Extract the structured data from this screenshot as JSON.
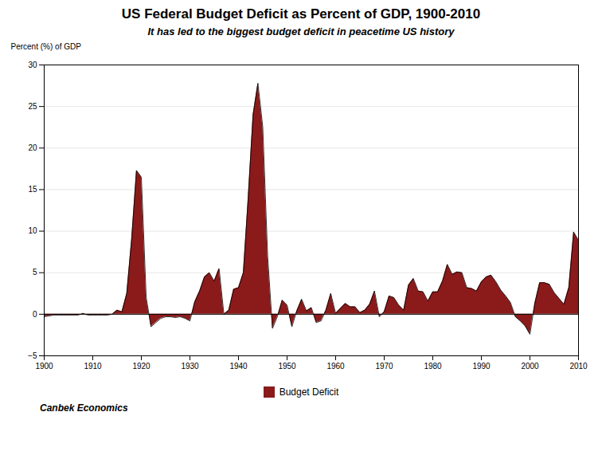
{
  "chart_data": {
    "type": "area",
    "title": "US Federal Budget Deficit as Percent of GDP, 1900-2010",
    "subtitle": "It has led to the biggest budget deficit in peacetime US history",
    "y_label": "Percent (%) of GDP",
    "annotations": [
      "Canbek Economics"
    ],
    "x": [
      1900,
      1901,
      1902,
      1903,
      1904,
      1905,
      1906,
      1907,
      1908,
      1909,
      1910,
      1911,
      1912,
      1913,
      1914,
      1915,
      1916,
      1917,
      1918,
      1919,
      1920,
      1921,
      1922,
      1923,
      1924,
      1925,
      1926,
      1927,
      1928,
      1929,
      1930,
      1931,
      1932,
      1933,
      1934,
      1935,
      1936,
      1937,
      1938,
      1939,
      1940,
      1941,
      1942,
      1943,
      1944,
      1945,
      1946,
      1947,
      1948,
      1949,
      1950,
      1951,
      1952,
      1953,
      1954,
      1955,
      1956,
      1957,
      1958,
      1959,
      1960,
      1961,
      1962,
      1963,
      1964,
      1965,
      1966,
      1967,
      1968,
      1969,
      1970,
      1971,
      1972,
      1973,
      1974,
      1975,
      1976,
      1977,
      1978,
      1979,
      1980,
      1981,
      1982,
      1983,
      1984,
      1985,
      1986,
      1987,
      1988,
      1989,
      1990,
      1991,
      1992,
      1993,
      1994,
      1995,
      1996,
      1997,
      1998,
      1999,
      2000,
      2001,
      2002,
      2003,
      2004,
      2005,
      2006,
      2007,
      2008,
      2009,
      2010
    ],
    "series": [
      {
        "name": "Budget Deficit",
        "color": "#8B1A1A",
        "values": [
          -0.3,
          -0.2,
          -0.1,
          -0.1,
          -0.1,
          -0.1,
          -0.1,
          -0.1,
          0.1,
          -0.1,
          -0.1,
          -0.1,
          -0.1,
          -0.1,
          0.0,
          0.5,
          0.3,
          2.5,
          9.0,
          17.3,
          16.5,
          2.0,
          -1.5,
          -1.0,
          -0.5,
          -0.3,
          -0.3,
          -0.4,
          -0.3,
          -0.5,
          -0.8,
          1.5,
          2.8,
          4.5,
          5.0,
          4.0,
          5.5,
          0.0,
          0.5,
          3.0,
          3.2,
          5.0,
          14.0,
          24.0,
          27.8,
          22.5,
          7.0,
          -1.7,
          -0.3,
          1.7,
          1.1,
          -1.5,
          0.4,
          1.8,
          0.4,
          0.8,
          -1.0,
          -0.8,
          0.5,
          2.5,
          0.1,
          0.7,
          1.3,
          0.9,
          0.9,
          0.2,
          0.5,
          1.2,
          2.8,
          -0.3,
          0.3,
          2.2,
          2.0,
          1.1,
          0.5,
          3.5,
          4.3,
          2.8,
          2.7,
          1.6,
          2.7,
          2.7,
          4.0,
          6.0,
          4.8,
          5.1,
          5.0,
          3.2,
          3.1,
          2.8,
          3.9,
          4.5,
          4.7,
          3.9,
          2.9,
          2.2,
          1.4,
          -0.3,
          -0.8,
          -1.4,
          -2.4,
          1.3,
          3.8,
          3.8,
          3.6,
          2.6,
          1.9,
          1.2,
          3.2,
          9.9,
          8.9
        ]
      }
    ],
    "xlim": [
      1900,
      2010
    ],
    "xticks": [
      1900,
      1910,
      1920,
      1930,
      1940,
      1950,
      1960,
      1970,
      1980,
      1990,
      2000,
      2010
    ],
    "ylim": [
      -5,
      30
    ],
    "yticks": [
      -5,
      0,
      5,
      10,
      15,
      20,
      25,
      30
    ],
    "grid": true,
    "legend": "bottom"
  }
}
